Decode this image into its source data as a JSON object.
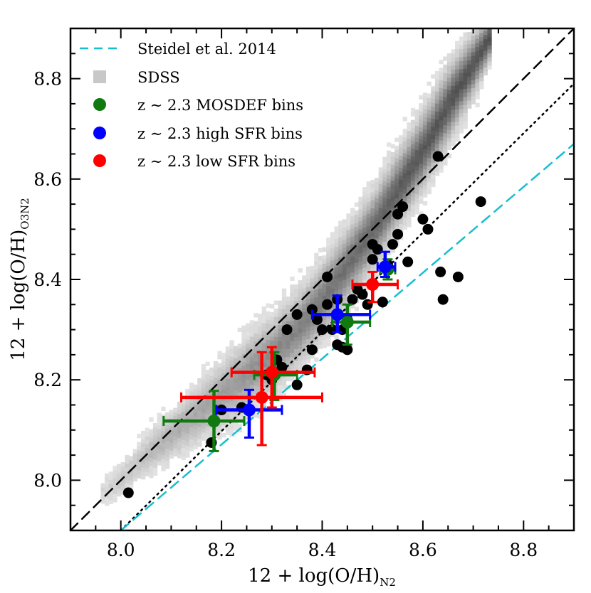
{
  "chart_data": {
    "type": "scatter",
    "xlabel": "12 + log(O/H)",
    "xlabel_sub": "N2",
    "ylabel": "12 + log(O/H)",
    "ylabel_sub": "O3N2",
    "xlim": [
      7.9,
      8.9
    ],
    "ylim": [
      7.9,
      8.9
    ],
    "xticks": [
      8.0,
      8.2,
      8.4,
      8.6,
      8.8
    ],
    "xtick_labels": [
      "8.0",
      "8.2",
      "8.4",
      "8.6",
      "8.8"
    ],
    "yticks": [
      8.0,
      8.2,
      8.4,
      8.6,
      8.8
    ],
    "ytick_labels": [
      "8.0",
      "8.2",
      "8.4",
      "8.6",
      "8.8"
    ],
    "legend_position": "top-left",
    "legend": [
      {
        "label": "Steidel et al. 2014",
        "marker": "dashed-line",
        "color": "#17becf"
      },
      {
        "label": "SDSS",
        "marker": "square",
        "color": "#c8c8c8"
      },
      {
        "label": "z ∼ 2.3 MOSDEF bins",
        "marker": "circle",
        "color": "#107a10"
      },
      {
        "label": "z ∼ 2.3 high SFR bins",
        "marker": "circle",
        "color": "#0000ff"
      },
      {
        "label": "z ∼ 2.3 low SFR bins",
        "marker": "circle",
        "color": "#ff0000"
      }
    ],
    "lines": [
      {
        "name": "one-to-one",
        "style": "dashed",
        "color": "#000000",
        "x": [
          7.9,
          8.9
        ],
        "y": [
          7.9,
          8.9
        ]
      },
      {
        "name": "offset",
        "style": "dotted",
        "color": "#000000",
        "x": [
          8.0,
          8.9
        ],
        "y": [
          7.9,
          8.79
        ]
      },
      {
        "name": "Steidel et al. 2014",
        "style": "dashed",
        "color": "#17becf",
        "x": [
          8.0,
          8.9
        ],
        "y": [
          7.9,
          8.67
        ]
      }
    ],
    "sdss_ridge": [
      {
        "x": 7.96,
        "y": 7.97,
        "w": 0.02
      },
      {
        "x": 8.0,
        "y": 8.0,
        "w": 0.025
      },
      {
        "x": 8.05,
        "y": 8.05,
        "w": 0.03
      },
      {
        "x": 8.1,
        "y": 8.09,
        "w": 0.035
      },
      {
        "x": 8.15,
        "y": 8.13,
        "w": 0.04
      },
      {
        "x": 8.2,
        "y": 8.17,
        "w": 0.045
      },
      {
        "x": 8.25,
        "y": 8.21,
        "w": 0.05
      },
      {
        "x": 8.3,
        "y": 8.25,
        "w": 0.05
      },
      {
        "x": 8.35,
        "y": 8.3,
        "w": 0.05
      },
      {
        "x": 8.4,
        "y": 8.36,
        "w": 0.05
      },
      {
        "x": 8.45,
        "y": 8.43,
        "w": 0.05
      },
      {
        "x": 8.5,
        "y": 8.5,
        "w": 0.05
      },
      {
        "x": 8.55,
        "y": 8.58,
        "w": 0.05
      },
      {
        "x": 8.6,
        "y": 8.66,
        "w": 0.05
      },
      {
        "x": 8.65,
        "y": 8.75,
        "w": 0.05
      },
      {
        "x": 8.7,
        "y": 8.83,
        "w": 0.04
      },
      {
        "x": 8.73,
        "y": 8.88,
        "w": 0.03
      }
    ],
    "individual_galaxies": {
      "x": [
        8.015,
        8.18,
        8.2,
        8.24,
        8.29,
        8.3,
        8.31,
        8.32,
        8.33,
        8.35,
        8.35,
        8.37,
        8.38,
        8.38,
        8.39,
        8.4,
        8.41,
        8.41,
        8.42,
        8.43,
        8.43,
        8.44,
        8.44,
        8.45,
        8.45,
        8.46,
        8.47,
        8.48,
        8.49,
        8.5,
        8.5,
        8.51,
        8.52,
        8.53,
        8.54,
        8.55,
        8.55,
        8.56,
        8.57,
        8.6,
        8.61,
        8.63,
        8.635,
        8.64,
        8.67,
        8.715
      ],
      "y": [
        7.975,
        8.075,
        8.14,
        8.145,
        8.21,
        8.2,
        8.24,
        8.225,
        8.3,
        8.19,
        8.33,
        8.22,
        8.26,
        8.34,
        8.32,
        8.3,
        8.35,
        8.405,
        8.3,
        8.27,
        8.36,
        8.265,
        8.3,
        8.26,
        8.32,
        8.36,
        8.38,
        8.37,
        8.35,
        8.47,
        8.44,
        8.46,
        8.355,
        8.43,
        8.47,
        8.49,
        8.53,
        8.545,
        8.435,
        8.52,
        8.5,
        8.645,
        8.415,
        8.36,
        8.405,
        8.555
      ]
    },
    "series": [
      {
        "name": "z ∼ 2.3 MOSDEF bins",
        "color": "#107a10",
        "x": [
          8.185,
          8.305,
          8.45,
          8.53
        ],
        "y": [
          8.118,
          8.21,
          8.315,
          8.42
        ],
        "xerr": [
          [
            0.1,
            0.06
          ],
          [
            0.04,
            0.045
          ],
          [
            0.03,
            0.045
          ],
          [
            0.015,
            0.015
          ]
        ],
        "yerr": [
          [
            0.06,
            0.06
          ],
          [
            0.05,
            0.045
          ],
          [
            0.045,
            0.035
          ],
          [
            0.02,
            0.02
          ]
        ]
      },
      {
        "name": "z ∼ 2.3 high SFR bins",
        "color": "#0000ff",
        "x": [
          8.255,
          8.43,
          8.525
        ],
        "y": [
          8.14,
          8.33,
          8.425
        ],
        "xerr": [
          [
            0.065,
            0.065
          ],
          [
            0.05,
            0.065
          ],
          [
            0.015,
            0.02
          ]
        ],
        "yerr": [
          [
            0.055,
            0.04
          ],
          [
            0.035,
            0.038
          ],
          [
            0.02,
            0.03
          ]
        ]
      },
      {
        "name": "z ∼ 2.3 low SFR bins",
        "color": "#ff0000",
        "x": [
          8.28,
          8.3,
          8.5
        ],
        "y": [
          8.165,
          8.215,
          8.39
        ],
        "xerr": [
          [
            0.16,
            0.12
          ],
          [
            0.08,
            0.085
          ],
          [
            0.04,
            0.05
          ]
        ],
        "yerr": [
          [
            0.095,
            0.09
          ],
          [
            0.07,
            0.05
          ],
          [
            0.035,
            0.025
          ]
        ]
      }
    ]
  }
}
